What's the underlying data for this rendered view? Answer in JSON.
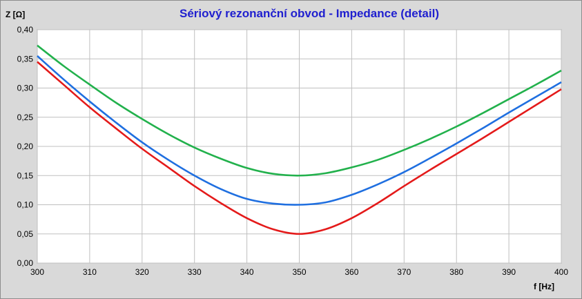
{
  "chart_data": {
    "type": "line",
    "title": "Sériový rezonanční obvod - Impedance (detail)",
    "xlabel": "f [Hz]",
    "ylabel": "Z [Ω]",
    "xlim": [
      300,
      400
    ],
    "ylim": [
      0,
      0.4
    ],
    "grid": true,
    "legend": "none",
    "x_ticks": [
      "300",
      "310",
      "320",
      "330",
      "340",
      "350",
      "360",
      "370",
      "380",
      "390",
      "400"
    ],
    "y_ticks": [
      "0,00",
      "0,05",
      "0,10",
      "0,15",
      "0,20",
      "0,25",
      "0,30",
      "0,35",
      "0,40"
    ],
    "x": [
      300,
      305,
      310,
      315,
      320,
      325,
      330,
      335,
      340,
      345,
      350,
      355,
      360,
      365,
      370,
      375,
      380,
      385,
      390,
      395,
      400
    ],
    "series": [
      {
        "color": "#22b14c",
        "values": [
          0.373,
          0.338,
          0.306,
          0.275,
          0.247,
          0.221,
          0.198,
          0.179,
          0.163,
          0.153,
          0.15,
          0.154,
          0.164,
          0.177,
          0.194,
          0.213,
          0.234,
          0.257,
          0.281,
          0.305,
          0.33
        ]
      },
      {
        "color": "#1f6fe0",
        "values": [
          0.355,
          0.315,
          0.277,
          0.241,
          0.207,
          0.177,
          0.15,
          0.127,
          0.11,
          0.102,
          0.1,
          0.104,
          0.117,
          0.135,
          0.156,
          0.18,
          0.205,
          0.231,
          0.258,
          0.284,
          0.31
        ]
      },
      {
        "color": "#e41a1a",
        "values": [
          0.345,
          0.306,
          0.267,
          0.231,
          0.196,
          0.164,
          0.132,
          0.103,
          0.077,
          0.058,
          0.05,
          0.058,
          0.077,
          0.103,
          0.132,
          0.16,
          0.187,
          0.214,
          0.242,
          0.27,
          0.298
        ]
      }
    ]
  }
}
